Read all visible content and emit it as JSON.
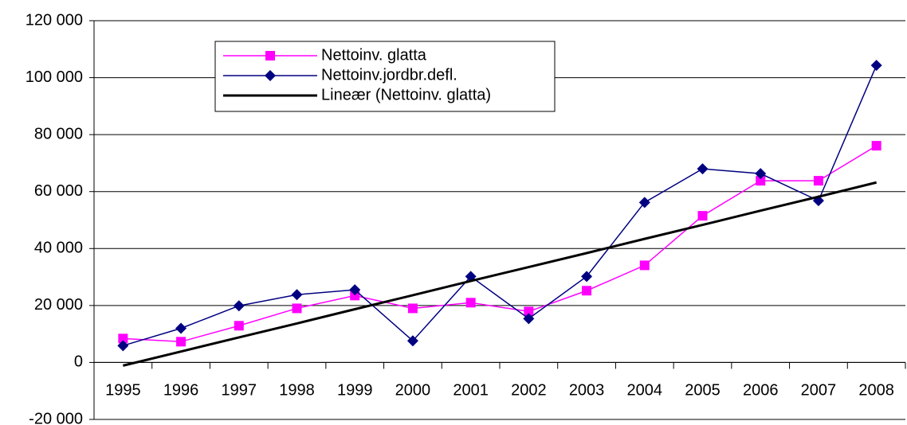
{
  "chart_data": {
    "type": "line",
    "categories": [
      "1995",
      "1996",
      "1997",
      "1998",
      "1999",
      "2000",
      "2001",
      "2002",
      "2003",
      "2004",
      "2005",
      "2006",
      "2007",
      "2008"
    ],
    "series": [
      {
        "name": "Nettoinv. glatta",
        "color": "#ff00ff",
        "marker": "square",
        "values": [
          8400,
          7300,
          12900,
          19000,
          23500,
          19000,
          21000,
          17900,
          25200,
          34100,
          51500,
          63800,
          63800,
          76100
        ]
      },
      {
        "name": "Nettoinv.jordbr.defl.",
        "color": "#000080",
        "marker": "diamond",
        "values": [
          5900,
          12000,
          19900,
          23800,
          25500,
          7600,
          30200,
          15400,
          30200,
          56200,
          68000,
          66300,
          56800,
          104300
        ]
      },
      {
        "name": "Lineær (Nettoinv. glatta)",
        "color": "#000000",
        "marker": "none",
        "values": [
          -1100,
          3850,
          8800,
          13700,
          18700,
          23600,
          28600,
          33500,
          38400,
          43400,
          48300,
          53300,
          58200,
          63200
        ]
      }
    ],
    "ylim": [
      -20000,
      120000
    ],
    "yticks": [
      {
        "value": -20000,
        "label": "-20 000"
      },
      0,
      {
        "value": 20000,
        "label": "20 000"
      },
      {
        "value": 40000,
        "label": "40 000"
      },
      {
        "value": 60000,
        "label": "60 000"
      },
      {
        "value": 80000,
        "label": "80 000"
      },
      {
        "value": 100000,
        "label": "100 000"
      },
      {
        "value": 120000,
        "label": "120 000"
      }
    ],
    "grid": true
  }
}
